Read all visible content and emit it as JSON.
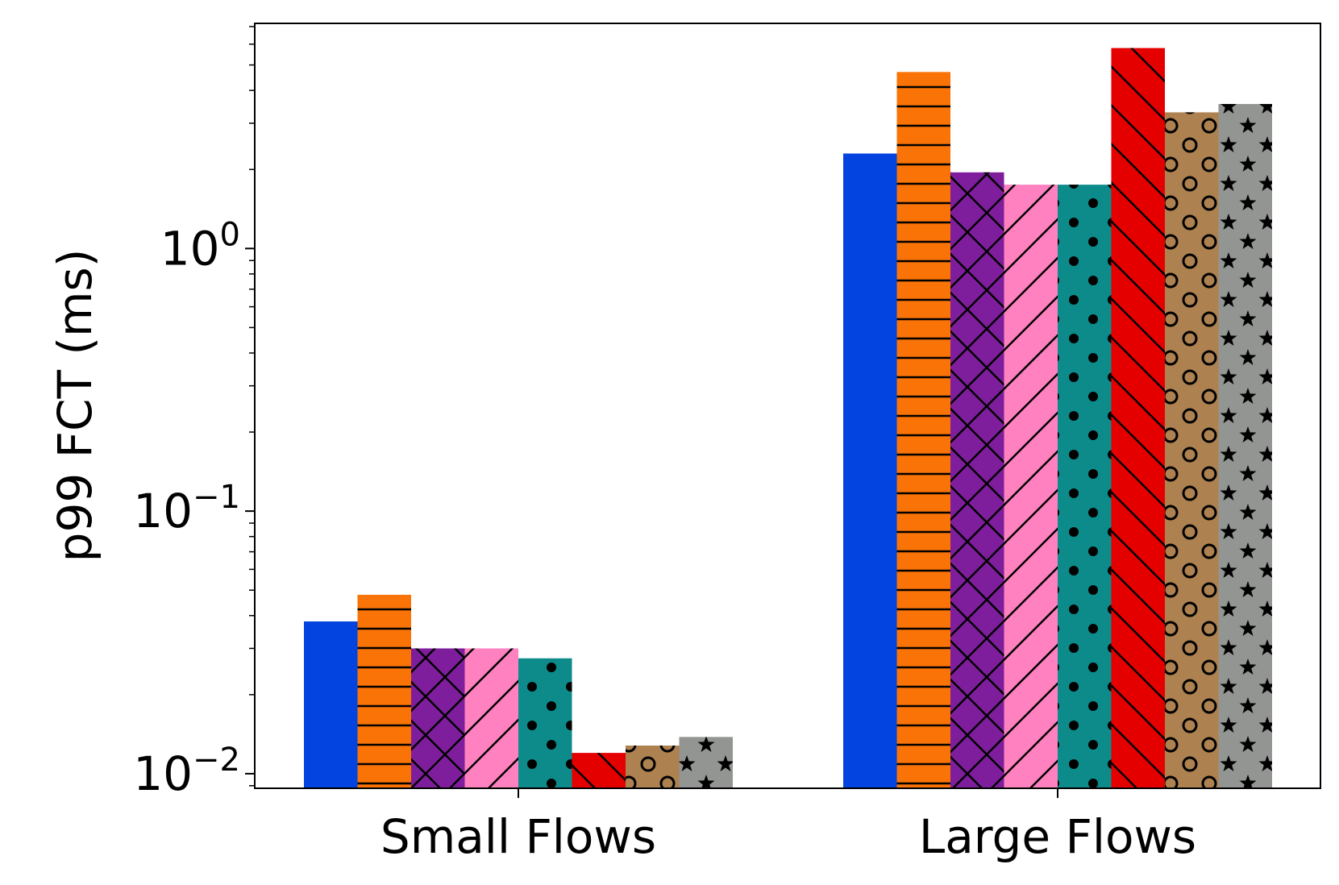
{
  "chart_data": {
    "type": "bar",
    "title": "",
    "xlabel": "",
    "ylabel": "p99 FCT (ms)",
    "yscale": "log",
    "ylim": [
      0.0088,
      7.2
    ],
    "yticks": [
      {
        "value": 0.01,
        "base": "10",
        "exp": "−2"
      },
      {
        "value": 0.1,
        "base": "10",
        "exp": "−1"
      },
      {
        "value": 1,
        "base": "10",
        "exp": "0"
      }
    ],
    "categories": [
      "Small Flows",
      "Large Flows"
    ],
    "grid": false,
    "legend": "none",
    "series": [
      {
        "color": "#0343df",
        "hatch": "none",
        "values": [
          0.038,
          2.3
        ]
      },
      {
        "color": "#f97306",
        "hatch": "hline",
        "values": [
          0.048,
          4.7
        ]
      },
      {
        "color": "#7e1e9c",
        "hatch": "cross",
        "values": [
          0.03,
          1.95
        ]
      },
      {
        "color": "#ff81c0",
        "hatch": "fslash",
        "values": [
          0.03,
          1.75
        ]
      },
      {
        "color": "#0d8b8b",
        "hatch": "dots",
        "values": [
          0.0275,
          1.75
        ]
      },
      {
        "color": "#e50000",
        "hatch": "bslash",
        "values": [
          0.012,
          5.8
        ]
      },
      {
        "color": "#ad8150",
        "hatch": "circles",
        "values": [
          0.0128,
          3.3
        ]
      },
      {
        "color": "#929591",
        "hatch": "stars",
        "values": [
          0.0138,
          3.55
        ]
      }
    ]
  }
}
